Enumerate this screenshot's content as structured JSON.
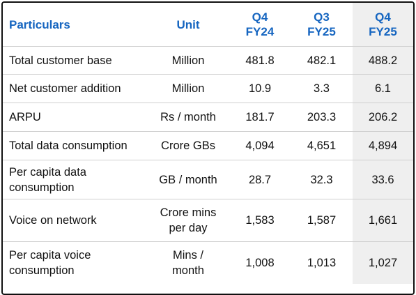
{
  "headers": [
    "Particulars",
    "Unit",
    "Q4\nFY24",
    "Q3\nFY25",
    "Q4\nFY25"
  ],
  "rows": [
    {
      "particular": "Total customer base",
      "unit": "Million",
      "q4fy24": "481.8",
      "q3fy25": "482.1",
      "q4fy25": "488.2"
    },
    {
      "particular": "Net customer addition",
      "unit": "Million",
      "q4fy24": "10.9",
      "q3fy25": "3.3",
      "q4fy25": "6.1"
    },
    {
      "particular": "ARPU",
      "unit": "Rs / month",
      "q4fy24": "181.7",
      "q3fy25": "203.3",
      "q4fy25": "206.2"
    },
    {
      "particular": "Total data consumption",
      "unit": "Crore GBs",
      "q4fy24": "4,094",
      "q3fy25": "4,651",
      "q4fy25": "4,894"
    },
    {
      "particular": "Per capita data\nconsumption",
      "unit": "GB / month",
      "q4fy24": "28.7",
      "q3fy25": "32.3",
      "q4fy25": "33.6"
    },
    {
      "particular": "Voice on network",
      "unit": "Crore mins\nper day",
      "q4fy24": "1,583",
      "q3fy25": "1,587",
      "q4fy25": "1,661"
    },
    {
      "particular": "Per capita voice\nconsumption",
      "unit": "Mins /\nmonth",
      "q4fy24": "1,008",
      "q3fy25": "1,013",
      "q4fy25": "1,027"
    }
  ],
  "colors": {
    "header_text": "#1565c0",
    "highlight_column": "#efefef",
    "border": "#111111"
  }
}
